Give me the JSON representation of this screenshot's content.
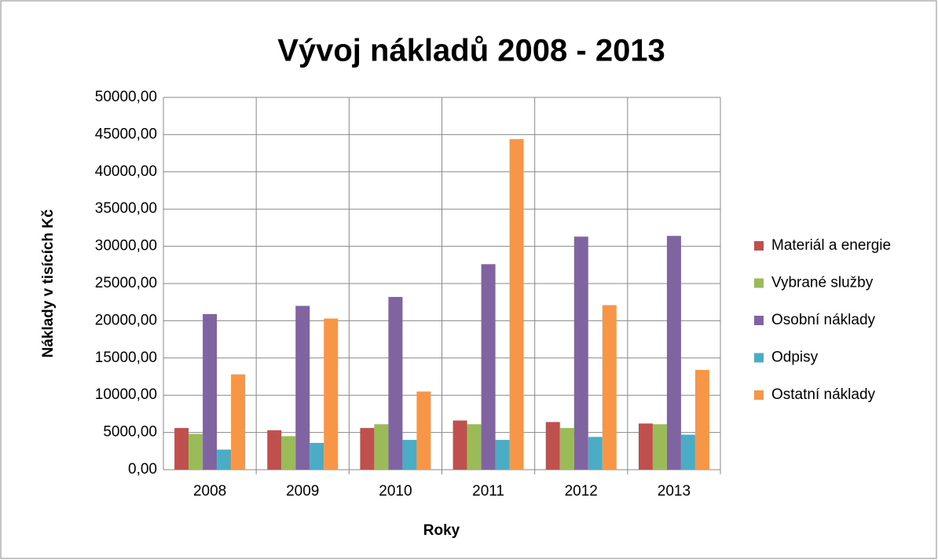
{
  "chart_data": {
    "type": "bar",
    "title": "Vývoj nákladů 2008 - 2013",
    "x_label": "Roky",
    "y_label": "Náklady v tisících Kč",
    "categories": [
      "2008",
      "2009",
      "2010",
      "2011",
      "2012",
      "2013"
    ],
    "series": [
      {
        "name": "Materiál a energie",
        "color": "#c0504d",
        "values": [
          5600,
          5300,
          5600,
          6600,
          6400,
          6200
        ]
      },
      {
        "name": "Vybrané služby",
        "color": "#9bbb59",
        "values": [
          4800,
          4500,
          6100,
          6100,
          5600,
          6100
        ]
      },
      {
        "name": "Osobní náklady",
        "color": "#8064a2",
        "values": [
          20900,
          22000,
          23200,
          27600,
          31300,
          31400
        ]
      },
      {
        "name": "Odpisy",
        "color": "#4bacc6",
        "values": [
          2700,
          3600,
          4000,
          4000,
          4400,
          4700
        ]
      },
      {
        "name": "Ostatní náklady",
        "color": "#f79646",
        "values": [
          12800,
          20300,
          10500,
          44400,
          22100,
          13400
        ]
      }
    ],
    "ylim": [
      0,
      50000
    ],
    "yticks": [
      {
        "value": 0,
        "label": "0,00"
      },
      {
        "value": 5000,
        "label": "5000,00"
      },
      {
        "value": 10000,
        "label": "10000,00"
      },
      {
        "value": 15000,
        "label": "15000,00"
      },
      {
        "value": 20000,
        "label": "20000,00"
      },
      {
        "value": 25000,
        "label": "25000,00"
      },
      {
        "value": 30000,
        "label": "30000,00"
      },
      {
        "value": 35000,
        "label": "35000,00"
      },
      {
        "value": 40000,
        "label": "40000,00"
      },
      {
        "value": 45000,
        "label": "45000,00"
      },
      {
        "value": 50000,
        "label": "50000,00"
      }
    ],
    "grid": true,
    "legend": "right"
  }
}
